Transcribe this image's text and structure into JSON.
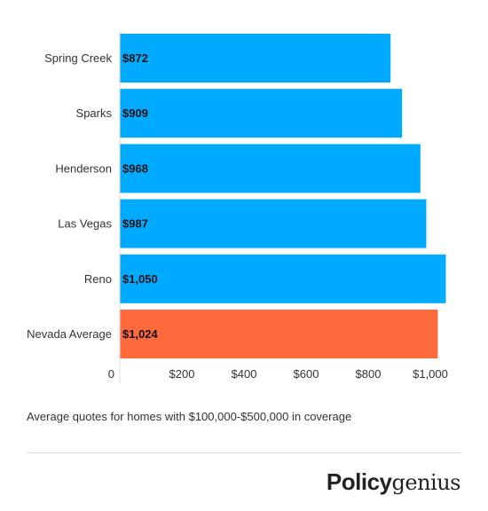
{
  "chart_data": {
    "type": "bar",
    "orientation": "horizontal",
    "categories": [
      "Spring Creek",
      "Sparks",
      "Henderson",
      "Las Vegas",
      "Reno",
      "Nevada Average"
    ],
    "values": [
      872,
      909,
      968,
      987,
      1050,
      1024
    ],
    "data_labels": [
      "$872",
      "$909",
      "$968",
      "$987",
      "$1,050",
      "$1,024"
    ],
    "bar_colors": [
      "#00aaff",
      "#00aaff",
      "#00aaff",
      "#00aaff",
      "#00aaff",
      "#ff6a3d"
    ],
    "xlim": [
      0,
      1100
    ],
    "x_ticks": [
      0,
      200,
      400,
      600,
      800,
      1000
    ],
    "x_tick_labels": [
      "0",
      "$200",
      "$400",
      "$600",
      "$800",
      "$1,000"
    ],
    "title": "",
    "xlabel": "",
    "ylabel": "",
    "grid": false,
    "legend": "none"
  },
  "caption": "Average quotes for homes with $100,000-$500,000 in coverage",
  "brand": {
    "part1": "Policy",
    "part2": "genius"
  }
}
